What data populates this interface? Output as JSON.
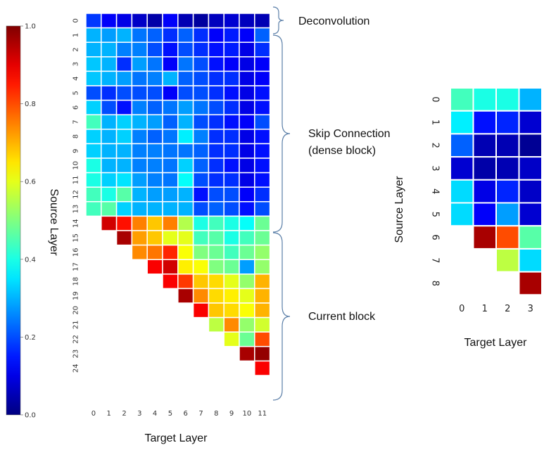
{
  "colorbar": {
    "label": "Source Layer",
    "ticks": [
      "1.0",
      "0.8",
      "0.6",
      "0.4",
      "0.2",
      "0.0"
    ],
    "tick_values": [
      1.0,
      0.8,
      0.6,
      0.4,
      0.2,
      0.0
    ],
    "range": [
      0,
      1
    ],
    "colormap": "jet"
  },
  "annotations": [
    {
      "text": "Deconvolution",
      "rows": [
        0,
        0
      ]
    },
    {
      "text": "Skip Connection",
      "rows": [
        1,
        13
      ]
    },
    {
      "text": "(dense block)",
      "rows": [
        1,
        13
      ]
    },
    {
      "text": "Current block",
      "rows": [
        14,
        24
      ]
    }
  ],
  "chart_data": [
    {
      "type": "heatmap",
      "xlabel": "Target Layer",
      "ylabel": "",
      "x_categories": [
        "0",
        "1",
        "2",
        "3",
        "4",
        "5",
        "6",
        "7",
        "8",
        "9",
        "10",
        "11"
      ],
      "y_categories": [
        "0",
        "1",
        "2",
        "3",
        "4",
        "5",
        "6",
        "7",
        "8",
        "9",
        "10",
        "11",
        "12",
        "13",
        "14",
        "15",
        "16",
        "17",
        "18",
        "19",
        "20",
        "21",
        "22",
        "23",
        "24"
      ],
      "value_range": [
        0,
        1
      ],
      "values": [
        [
          0.18,
          0.12,
          0.1,
          0.07,
          0.04,
          0.12,
          0.05,
          0.03,
          0.06,
          0.08,
          0.06,
          0.05
        ],
        [
          0.3,
          0.28,
          0.3,
          0.24,
          0.22,
          0.17,
          0.22,
          0.17,
          0.12,
          0.15,
          0.12,
          0.22
        ],
        [
          0.3,
          0.3,
          0.25,
          0.25,
          0.2,
          0.14,
          0.2,
          0.17,
          0.14,
          0.15,
          0.1,
          0.17
        ],
        [
          0.32,
          0.3,
          0.17,
          0.28,
          0.24,
          0.12,
          0.24,
          0.2,
          0.14,
          0.12,
          0.1,
          0.12
        ],
        [
          0.32,
          0.3,
          0.28,
          0.24,
          0.25,
          0.3,
          0.22,
          0.2,
          0.17,
          0.17,
          0.1,
          0.12
        ],
        [
          0.2,
          0.17,
          0.2,
          0.2,
          0.2,
          0.12,
          0.2,
          0.2,
          0.17,
          0.14,
          0.1,
          0.14
        ],
        [
          0.33,
          0.2,
          0.14,
          0.25,
          0.22,
          0.24,
          0.28,
          0.24,
          0.2,
          0.17,
          0.1,
          0.14
        ],
        [
          0.44,
          0.3,
          0.33,
          0.3,
          0.28,
          0.22,
          0.3,
          0.2,
          0.17,
          0.14,
          0.12,
          0.2
        ],
        [
          0.33,
          0.3,
          0.33,
          0.25,
          0.22,
          0.24,
          0.36,
          0.25,
          0.17,
          0.17,
          0.1,
          0.14
        ],
        [
          0.33,
          0.3,
          0.3,
          0.25,
          0.25,
          0.24,
          0.24,
          0.22,
          0.17,
          0.17,
          0.1,
          0.14
        ],
        [
          0.4,
          0.3,
          0.3,
          0.25,
          0.25,
          0.24,
          0.33,
          0.22,
          0.17,
          0.14,
          0.1,
          0.14
        ],
        [
          0.4,
          0.33,
          0.35,
          0.28,
          0.25,
          0.24,
          0.38,
          0.2,
          0.17,
          0.17,
          0.1,
          0.14
        ],
        [
          0.44,
          0.4,
          0.46,
          0.3,
          0.28,
          0.28,
          0.3,
          0.14,
          0.2,
          0.2,
          0.12,
          0.17
        ],
        [
          0.44,
          0.46,
          0.33,
          0.3,
          0.3,
          0.3,
          0.3,
          0.2,
          0.22,
          0.2,
          0.14,
          0.2
        ],
        [
          null,
          0.92,
          0.86,
          0.75,
          0.68,
          0.75,
          0.55,
          0.4,
          0.44,
          0.4,
          0.38,
          0.48
        ],
        [
          null,
          null,
          0.96,
          0.72,
          0.68,
          0.6,
          0.6,
          0.44,
          0.46,
          0.4,
          0.44,
          0.48
        ],
        [
          null,
          null,
          null,
          0.74,
          0.76,
          0.84,
          0.62,
          0.5,
          0.48,
          0.44,
          0.48,
          0.52
        ],
        [
          null,
          null,
          null,
          null,
          0.88,
          0.92,
          0.64,
          0.62,
          0.5,
          0.48,
          0.28,
          0.52
        ],
        [
          null,
          null,
          null,
          null,
          null,
          0.88,
          0.82,
          0.68,
          0.66,
          0.6,
          0.52,
          0.7
        ],
        [
          null,
          null,
          null,
          null,
          null,
          null,
          0.96,
          0.74,
          0.66,
          0.64,
          0.6,
          0.7
        ],
        [
          null,
          null,
          null,
          null,
          null,
          null,
          null,
          0.88,
          0.68,
          0.66,
          0.62,
          0.7
        ],
        [
          null,
          null,
          null,
          null,
          null,
          null,
          null,
          null,
          0.56,
          0.74,
          0.52,
          0.58
        ],
        [
          null,
          null,
          null,
          null,
          null,
          null,
          null,
          null,
          null,
          0.6,
          0.48,
          0.8
        ],
        [
          null,
          null,
          null,
          null,
          null,
          null,
          null,
          null,
          null,
          null,
          0.96,
          0.98
        ],
        [
          null,
          null,
          null,
          null,
          null,
          null,
          null,
          null,
          null,
          null,
          null,
          0.88
        ]
      ]
    },
    {
      "type": "heatmap",
      "xlabel": "Target Layer",
      "ylabel": "Source Layer",
      "x_categories": [
        "0",
        "1",
        "2",
        "3"
      ],
      "y_categories": [
        "0",
        "1",
        "2",
        "3",
        "4",
        "5",
        "6",
        "7",
        "8"
      ],
      "value_range": [
        0,
        1
      ],
      "values": [
        [
          0.44,
          0.4,
          0.4,
          0.3
        ],
        [
          0.36,
          0.14,
          0.16,
          0.08
        ],
        [
          0.22,
          0.05,
          0.05,
          0.02
        ],
        [
          0.08,
          0.04,
          0.05,
          0.07
        ],
        [
          0.34,
          0.1,
          0.16,
          0.07
        ],
        [
          0.34,
          0.12,
          0.28,
          0.08
        ],
        [
          null,
          0.96,
          0.8,
          0.46
        ],
        [
          null,
          null,
          0.56,
          0.34
        ],
        [
          null,
          null,
          null,
          0.96
        ]
      ]
    }
  ]
}
